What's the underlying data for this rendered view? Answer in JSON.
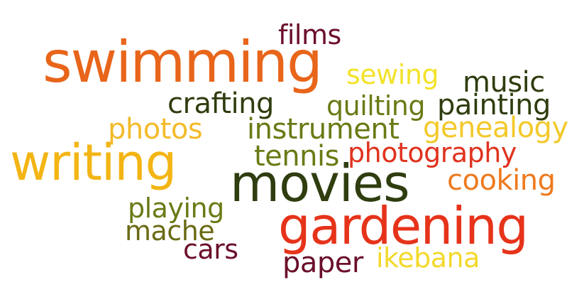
{
  "words": [
    {
      "id": "films",
      "text": "films",
      "color": "#6b0f2a"
    },
    {
      "id": "swimming",
      "text": "swimming",
      "color": "#e8651a"
    },
    {
      "id": "sewing",
      "text": "sewing",
      "color": "#f3e22a"
    },
    {
      "id": "music",
      "text": "music",
      "color": "#2f3d0f"
    },
    {
      "id": "crafting",
      "text": "crafting",
      "color": "#2f3d0f"
    },
    {
      "id": "quilting",
      "text": "quilting",
      "color": "#6a7a14"
    },
    {
      "id": "painting",
      "text": "painting",
      "color": "#2f3d0f"
    },
    {
      "id": "photos",
      "text": "photos",
      "color": "#f3bb2a"
    },
    {
      "id": "instrument",
      "text": "instrument",
      "color": "#6a7a14"
    },
    {
      "id": "genealogy",
      "text": "genealogy",
      "color": "#f3c92a"
    },
    {
      "id": "writing",
      "text": "writing",
      "color": "#f3b514"
    },
    {
      "id": "tennis",
      "text": "tennis",
      "color": "#6a7a14"
    },
    {
      "id": "photography",
      "text": "photography",
      "color": "#e0321e"
    },
    {
      "id": "movies",
      "text": "movies",
      "color": "#2f3d0f"
    },
    {
      "id": "cooking",
      "text": "cooking",
      "color": "#ee7a1e"
    },
    {
      "id": "playing",
      "text": "playing",
      "color": "#6a7a14"
    },
    {
      "id": "gardening",
      "text": "gardening",
      "color": "#e6331a"
    },
    {
      "id": "mache",
      "text": "mache",
      "color": "#6a6a14"
    },
    {
      "id": "cars",
      "text": "cars",
      "color": "#6b0f2a"
    },
    {
      "id": "paper",
      "text": "paper",
      "color": "#6b0f2a"
    },
    {
      "id": "ikebana",
      "text": "ikebana",
      "color": "#f3d92a"
    }
  ]
}
